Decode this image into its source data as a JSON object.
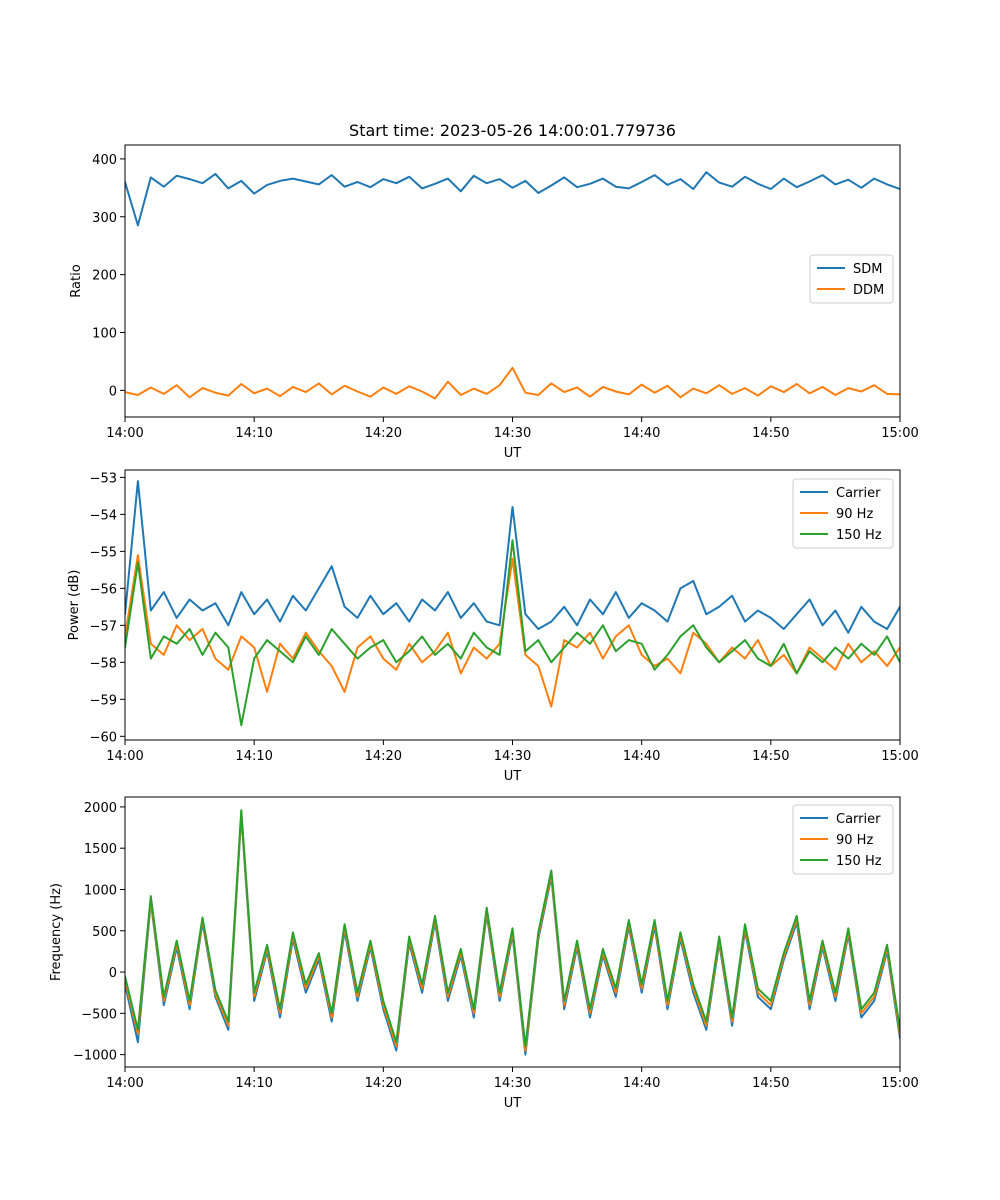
{
  "chart_data": [
    {
      "type": "line",
      "title": "Start time: 2023-05-26 14:00:01.779736",
      "xlabel": "UT",
      "ylabel": "Ratio",
      "xlim": [
        "14:00",
        "15:00"
      ],
      "ylim": [
        -46,
        424
      ],
      "xticks": [
        "14:00",
        "14:10",
        "14:20",
        "14:30",
        "14:40",
        "14:50",
        "15:00"
      ],
      "yticks": [
        0,
        100,
        200,
        300,
        400
      ],
      "legend_loc": "center-right",
      "x": [
        "14:00",
        "14:01",
        "14:02",
        "14:03",
        "14:04",
        "14:05",
        "14:06",
        "14:07",
        "14:08",
        "14:09",
        "14:10",
        "14:11",
        "14:12",
        "14:13",
        "14:14",
        "14:15",
        "14:16",
        "14:17",
        "14:18",
        "14:19",
        "14:20",
        "14:21",
        "14:22",
        "14:23",
        "14:24",
        "14:25",
        "14:26",
        "14:27",
        "14:28",
        "14:29",
        "14:30",
        "14:31",
        "14:32",
        "14:33",
        "14:34",
        "14:35",
        "14:36",
        "14:37",
        "14:38",
        "14:39",
        "14:40",
        "14:41",
        "14:42",
        "14:43",
        "14:44",
        "14:45",
        "14:46",
        "14:47",
        "14:48",
        "14:49",
        "14:50",
        "14:51",
        "14:52",
        "14:53",
        "14:54",
        "14:55",
        "14:56",
        "14:57",
        "14:58",
        "14:59",
        "15:00"
      ],
      "series": [
        {
          "name": "SDM",
          "color": "#1f77b4",
          "values": [
            360,
            285,
            368,
            352,
            371,
            365,
            358,
            374,
            349,
            362,
            340,
            355,
            362,
            366,
            361,
            356,
            372,
            352,
            360,
            351,
            365,
            358,
            369,
            349,
            357,
            366,
            344,
            371,
            358,
            365,
            350,
            362,
            341,
            354,
            368,
            351,
            357,
            366,
            352,
            349,
            360,
            372,
            355,
            365,
            348,
            377,
            359,
            352,
            369,
            357,
            348,
            366,
            351,
            361,
            372,
            356,
            364,
            350,
            366,
            356,
            348
          ]
        },
        {
          "name": "DDM",
          "color": "#ff7f0e",
          "values": [
            -3,
            -8,
            5,
            -6,
            9,
            -12,
            4,
            -4,
            -9,
            11,
            -5,
            3,
            -10,
            6,
            -3,
            12,
            -7,
            8,
            -2,
            -11,
            5,
            -6,
            7,
            -2,
            -14,
            15,
            -8,
            3,
            -6,
            9,
            39,
            -4,
            -8,
            12,
            -3,
            5,
            -11,
            6,
            -2,
            -7,
            10,
            -4,
            8,
            -12,
            3,
            -5,
            9,
            -6,
            4,
            -9,
            7,
            -3,
            11,
            -5,
            6,
            -8,
            4,
            -2,
            9,
            -6,
            -7
          ]
        }
      ]
    },
    {
      "type": "line",
      "title": "",
      "xlabel": "UT",
      "ylabel": "Power (dB)",
      "xlim": [
        "14:00",
        "15:00"
      ],
      "ylim": [
        -60.1,
        -52.8
      ],
      "xticks": [
        "14:00",
        "14:10",
        "14:20",
        "14:30",
        "14:40",
        "14:50",
        "15:00"
      ],
      "yticks": [
        -53,
        -54,
        -55,
        -56,
        -57,
        -58,
        -59,
        -60
      ],
      "legend_loc": "top-right",
      "x": [
        "14:00",
        "14:01",
        "14:02",
        "14:03",
        "14:04",
        "14:05",
        "14:06",
        "14:07",
        "14:08",
        "14:09",
        "14:10",
        "14:11",
        "14:12",
        "14:13",
        "14:14",
        "14:15",
        "14:16",
        "14:17",
        "14:18",
        "14:19",
        "14:20",
        "14:21",
        "14:22",
        "14:23",
        "14:24",
        "14:25",
        "14:26",
        "14:27",
        "14:28",
        "14:29",
        "14:30",
        "14:31",
        "14:32",
        "14:33",
        "14:34",
        "14:35",
        "14:36",
        "14:37",
        "14:38",
        "14:39",
        "14:40",
        "14:41",
        "14:42",
        "14:43",
        "14:44",
        "14:45",
        "14:46",
        "14:47",
        "14:48",
        "14:49",
        "14:50",
        "14:51",
        "14:52",
        "14:53",
        "14:54",
        "14:55",
        "14:56",
        "14:57",
        "14:58",
        "14:59",
        "15:00"
      ],
      "series": [
        {
          "name": "Carrier",
          "color": "#1f77b4",
          "values": [
            -56.7,
            -53.1,
            -56.6,
            -56.1,
            -56.8,
            -56.3,
            -56.6,
            -56.4,
            -57.0,
            -56.1,
            -56.7,
            -56.3,
            -56.9,
            -56.2,
            -56.6,
            -56.0,
            -55.4,
            -56.5,
            -56.8,
            -56.2,
            -56.7,
            -56.4,
            -56.9,
            -56.3,
            -56.6,
            -56.1,
            -56.8,
            -56.4,
            -56.9,
            -57.0,
            -53.8,
            -56.7,
            -57.1,
            -56.9,
            -56.5,
            -57.0,
            -56.3,
            -56.7,
            -56.1,
            -56.8,
            -56.4,
            -56.6,
            -56.9,
            -56.0,
            -55.8,
            -56.7,
            -56.5,
            -56.2,
            -56.9,
            -56.6,
            -56.8,
            -57.1,
            -56.7,
            -56.3,
            -57.0,
            -56.6,
            -57.2,
            -56.5,
            -56.9,
            -57.1,
            -56.5
          ]
        },
        {
          "name": "90 Hz",
          "color": "#ff7f0e",
          "values": [
            -57.3,
            -55.1,
            -57.5,
            -57.8,
            -57.0,
            -57.4,
            -57.1,
            -57.9,
            -58.2,
            -57.3,
            -57.6,
            -58.8,
            -57.5,
            -57.9,
            -57.2,
            -57.7,
            -58.1,
            -58.8,
            -57.6,
            -57.3,
            -57.9,
            -58.2,
            -57.5,
            -58.0,
            -57.7,
            -57.2,
            -58.3,
            -57.6,
            -57.9,
            -57.5,
            -55.2,
            -57.8,
            -58.1,
            -59.2,
            -57.4,
            -57.6,
            -57.2,
            -57.9,
            -57.3,
            -57.0,
            -57.8,
            -58.1,
            -57.9,
            -58.3,
            -57.2,
            -57.5,
            -58.0,
            -57.6,
            -57.9,
            -57.4,
            -58.1,
            -57.8,
            -58.3,
            -57.6,
            -57.9,
            -58.2,
            -57.5,
            -58.0,
            -57.7,
            -58.1,
            -57.6
          ]
        },
        {
          "name": "150 Hz",
          "color": "#2ca02c",
          "values": [
            -57.6,
            -55.3,
            -57.9,
            -57.3,
            -57.5,
            -57.1,
            -57.8,
            -57.2,
            -57.6,
            -59.7,
            -57.9,
            -57.4,
            -57.7,
            -58.0,
            -57.3,
            -57.8,
            -57.1,
            -57.5,
            -57.9,
            -57.6,
            -57.4,
            -58.0,
            -57.7,
            -57.3,
            -57.8,
            -57.5,
            -57.9,
            -57.2,
            -57.6,
            -57.8,
            -54.7,
            -57.7,
            -57.4,
            -58.0,
            -57.6,
            -57.2,
            -57.5,
            -57.0,
            -57.7,
            -57.4,
            -57.5,
            -58.2,
            -57.8,
            -57.3,
            -57.0,
            -57.6,
            -58.0,
            -57.7,
            -57.4,
            -57.9,
            -58.1,
            -57.5,
            -58.3,
            -57.7,
            -58.0,
            -57.6,
            -57.9,
            -57.5,
            -57.8,
            -57.3,
            -58.0
          ]
        }
      ]
    },
    {
      "type": "line",
      "title": "",
      "xlabel": "UT",
      "ylabel": "Frequency (Hz)",
      "xlim": [
        "14:00",
        "15:00"
      ],
      "ylim": [
        -1150,
        2120
      ],
      "xticks": [
        "14:00",
        "14:10",
        "14:20",
        "14:30",
        "14:40",
        "14:50",
        "15:00"
      ],
      "yticks": [
        2000,
        1500,
        1000,
        500,
        0,
        -500,
        -1000
      ],
      "legend_loc": "top-right",
      "x": [
        "14:00",
        "14:01",
        "14:02",
        "14:03",
        "14:04",
        "14:05",
        "14:06",
        "14:07",
        "14:08",
        "14:09",
        "14:10",
        "14:11",
        "14:12",
        "14:13",
        "14:14",
        "14:15",
        "14:16",
        "14:17",
        "14:18",
        "14:19",
        "14:20",
        "14:21",
        "14:22",
        "14:23",
        "14:24",
        "14:25",
        "14:26",
        "14:27",
        "14:28",
        "14:29",
        "14:30",
        "14:31",
        "14:32",
        "14:33",
        "14:34",
        "14:35",
        "14:36",
        "14:37",
        "14:38",
        "14:39",
        "14:40",
        "14:41",
        "14:42",
        "14:43",
        "14:44",
        "14:45",
        "14:46",
        "14:47",
        "14:48",
        "14:49",
        "14:50",
        "14:51",
        "14:52",
        "14:53",
        "14:54",
        "14:55",
        "14:56",
        "14:57",
        "14:58",
        "14:59",
        "15:00"
      ],
      "series": [
        {
          "name": "Carrier",
          "color": "#1f77b4",
          "values": [
            -150,
            -850,
            850,
            -400,
            300,
            -450,
            600,
            -300,
            -700,
            1900,
            -350,
            250,
            -550,
            400,
            -250,
            150,
            -600,
            500,
            -350,
            300,
            -450,
            -950,
            350,
            -250,
            600,
            -350,
            200,
            -550,
            700,
            -350,
            450,
            -1000,
            400,
            1150,
            -450,
            300,
            -550,
            200,
            -300,
            550,
            -250,
            550,
            -450,
            400,
            -250,
            -700,
            350,
            -650,
            500,
            -300,
            -450,
            150,
            600,
            -450,
            300,
            -350,
            450,
            -550,
            -350,
            250,
            -800
          ]
        },
        {
          "name": "90 Hz",
          "color": "#ff7f0e",
          "values": [
            -100,
            -750,
            880,
            -350,
            340,
            -400,
            630,
            -260,
            -650,
            1930,
            -300,
            290,
            -500,
            440,
            -200,
            190,
            -550,
            540,
            -300,
            340,
            -400,
            -900,
            390,
            -200,
            640,
            -300,
            240,
            -500,
            740,
            -300,
            490,
            -950,
            440,
            1190,
            -400,
            340,
            -500,
            240,
            -250,
            590,
            -200,
            590,
            -400,
            440,
            -200,
            -650,
            390,
            -600,
            540,
            -250,
            -400,
            190,
            640,
            -400,
            340,
            -300,
            490,
            -500,
            -300,
            290,
            -750
          ]
        },
        {
          "name": "150 Hz",
          "color": "#2ca02c",
          "values": [
            -50,
            -700,
            920,
            -300,
            380,
            -350,
            660,
            -220,
            -600,
            1960,
            -250,
            330,
            -450,
            480,
            -150,
            230,
            -500,
            580,
            -250,
            380,
            -350,
            -850,
            430,
            -150,
            680,
            -250,
            280,
            -450,
            780,
            -250,
            530,
            -900,
            480,
            1230,
            -350,
            380,
            -450,
            280,
            -200,
            630,
            -150,
            630,
            -350,
            480,
            -150,
            -600,
            430,
            -550,
            580,
            -200,
            -350,
            230,
            680,
            -350,
            380,
            -250,
            530,
            -450,
            -250,
            330,
            -700
          ]
        }
      ]
    }
  ]
}
